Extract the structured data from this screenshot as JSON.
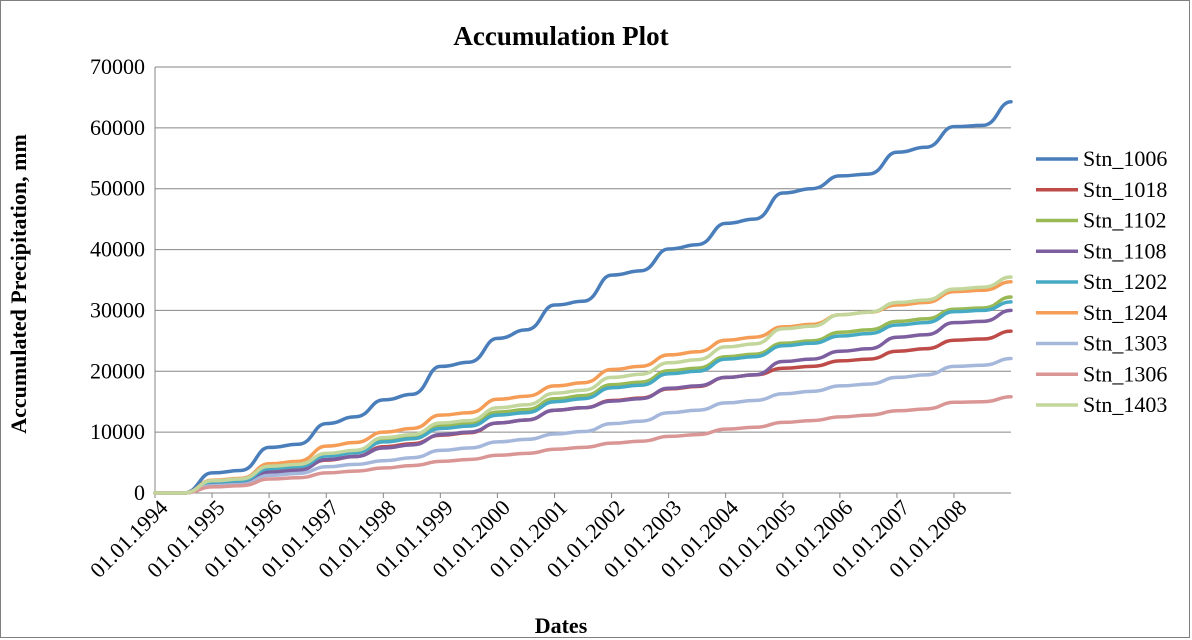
{
  "chart_data": {
    "type": "line",
    "title": "Accumulation Plot",
    "xlabel": "Dates",
    "ylabel": "Accumulated Precipitation, mm",
    "ylim": [
      0,
      70000
    ],
    "yticks": [
      "0",
      "10000",
      "20000",
      "30000",
      "40000",
      "50000",
      "60000",
      "70000"
    ],
    "xlim": [
      "01.01.1994",
      "31.12.2008"
    ],
    "x_tick_labels": [
      "01.01.1994",
      "01.01.1995",
      "01.01.1996",
      "01.01.1997",
      "01.01.1998",
      "01.01.1999",
      "01.01.2000",
      "01.01.2001",
      "01.01.2002",
      "01.01.2003",
      "01.01.2004",
      "01.01.2005",
      "01.01.2006",
      "01.01.2007",
      "01.01.2008"
    ],
    "grid": "horizontal major gridlines",
    "legend": "right",
    "x": [
      "01.01.1994",
      "01.07.1994",
      "01.01.1995",
      "01.07.1995",
      "01.01.1996",
      "01.07.1996",
      "01.01.1997",
      "01.07.1997",
      "01.01.1998",
      "01.07.1998",
      "01.01.1999",
      "01.07.1999",
      "01.01.2000",
      "01.07.2000",
      "01.01.2001",
      "01.07.2001",
      "01.01.2002",
      "01.07.2002",
      "01.01.2003",
      "01.07.2003",
      "01.01.2004",
      "01.07.2004",
      "01.01.2005",
      "01.07.2005",
      "01.01.2006",
      "01.07.2006",
      "01.01.2007",
      "01.07.2007",
      "01.01.2008",
      "01.07.2008",
      "31.12.2008"
    ],
    "series": [
      {
        "name": "Stn_1006",
        "color": "#4a7ebb",
        "values": [
          0,
          0,
          3300,
          3700,
          7500,
          8000,
          11400,
          12500,
          15300,
          16200,
          20800,
          21500,
          25400,
          26800,
          30900,
          31500,
          35800,
          36500,
          40100,
          40800,
          44300,
          45000,
          49300,
          50000,
          52100,
          52400,
          56000,
          56800,
          60200,
          60400,
          64300
        ]
      },
      {
        "name": "Stn_1018",
        "color": "#be4b48",
        "values": [
          0,
          0,
          1500,
          1700,
          3600,
          3900,
          5400,
          6000,
          7600,
          8100,
          9500,
          9900,
          11500,
          12000,
          13600,
          14000,
          15200,
          15600,
          17100,
          17500,
          19000,
          19400,
          20500,
          20800,
          21700,
          22000,
          23300,
          23700,
          25100,
          25300,
          26600
        ]
      },
      {
        "name": "Stn_1102",
        "color": "#98b954",
        "values": [
          0,
          0,
          1900,
          2100,
          4200,
          4500,
          6300,
          6800,
          8700,
          9200,
          11000,
          11400,
          13300,
          13700,
          15500,
          16000,
          17800,
          18200,
          20100,
          20500,
          22400,
          22800,
          24600,
          25000,
          26400,
          26800,
          28200,
          28600,
          30200,
          30400,
          32200
        ]
      },
      {
        "name": "Stn_1108",
        "color": "#7d5fa0",
        "values": [
          0,
          0,
          1400,
          1600,
          3400,
          3700,
          5500,
          6000,
          7400,
          7900,
          9600,
          10000,
          11500,
          12000,
          13600,
          14000,
          15100,
          15500,
          17200,
          17600,
          19000,
          19400,
          21600,
          22000,
          23300,
          23700,
          25600,
          26000,
          28000,
          28200,
          30000
        ]
      },
      {
        "name": "Stn_1202",
        "color": "#46aac5",
        "values": [
          0,
          0,
          1800,
          2000,
          4000,
          4300,
          6100,
          6600,
          8400,
          8900,
          10600,
          11000,
          12800,
          13200,
          15000,
          15500,
          17300,
          17700,
          19600,
          20000,
          22000,
          22400,
          24200,
          24600,
          25800,
          26200,
          27600,
          28000,
          29800,
          30000,
          31400
        ]
      },
      {
        "name": "Stn_1204",
        "color": "#f59d56",
        "values": [
          0,
          0,
          2100,
          2400,
          4800,
          5200,
          7700,
          8300,
          10000,
          10600,
          12800,
          13200,
          15400,
          15900,
          17600,
          18100,
          20300,
          20800,
          22700,
          23200,
          25100,
          25600,
          27300,
          27700,
          29300,
          29700,
          30900,
          31300,
          33100,
          33300,
          34700
        ]
      },
      {
        "name": "Stn_1303",
        "color": "#a5b8db",
        "values": [
          0,
          0,
          1200,
          1400,
          2900,
          3200,
          4300,
          4700,
          5300,
          5800,
          7000,
          7400,
          8400,
          8800,
          9700,
          10100,
          11400,
          11800,
          13200,
          13600,
          14800,
          15200,
          16300,
          16700,
          17600,
          17900,
          19000,
          19400,
          20800,
          21000,
          22100
        ]
      },
      {
        "name": "Stn_1306",
        "color": "#d99694",
        "values": [
          0,
          0,
          1000,
          1200,
          2300,
          2500,
          3300,
          3600,
          4100,
          4500,
          5200,
          5500,
          6200,
          6500,
          7200,
          7500,
          8200,
          8500,
          9300,
          9600,
          10500,
          10800,
          11600,
          11900,
          12500,
          12800,
          13500,
          13800,
          14900,
          15000,
          15800
        ]
      },
      {
        "name": "Stn_1403",
        "color": "#c3d69b",
        "values": [
          0,
          0,
          2000,
          2300,
          4400,
          4700,
          6500,
          7000,
          9100,
          9600,
          11500,
          11900,
          14000,
          14500,
          16400,
          16900,
          19000,
          19500,
          21400,
          21900,
          24000,
          24500,
          27000,
          27400,
          29300,
          29700,
          31300,
          31700,
          33500,
          33800,
          35500
        ]
      }
    ]
  }
}
